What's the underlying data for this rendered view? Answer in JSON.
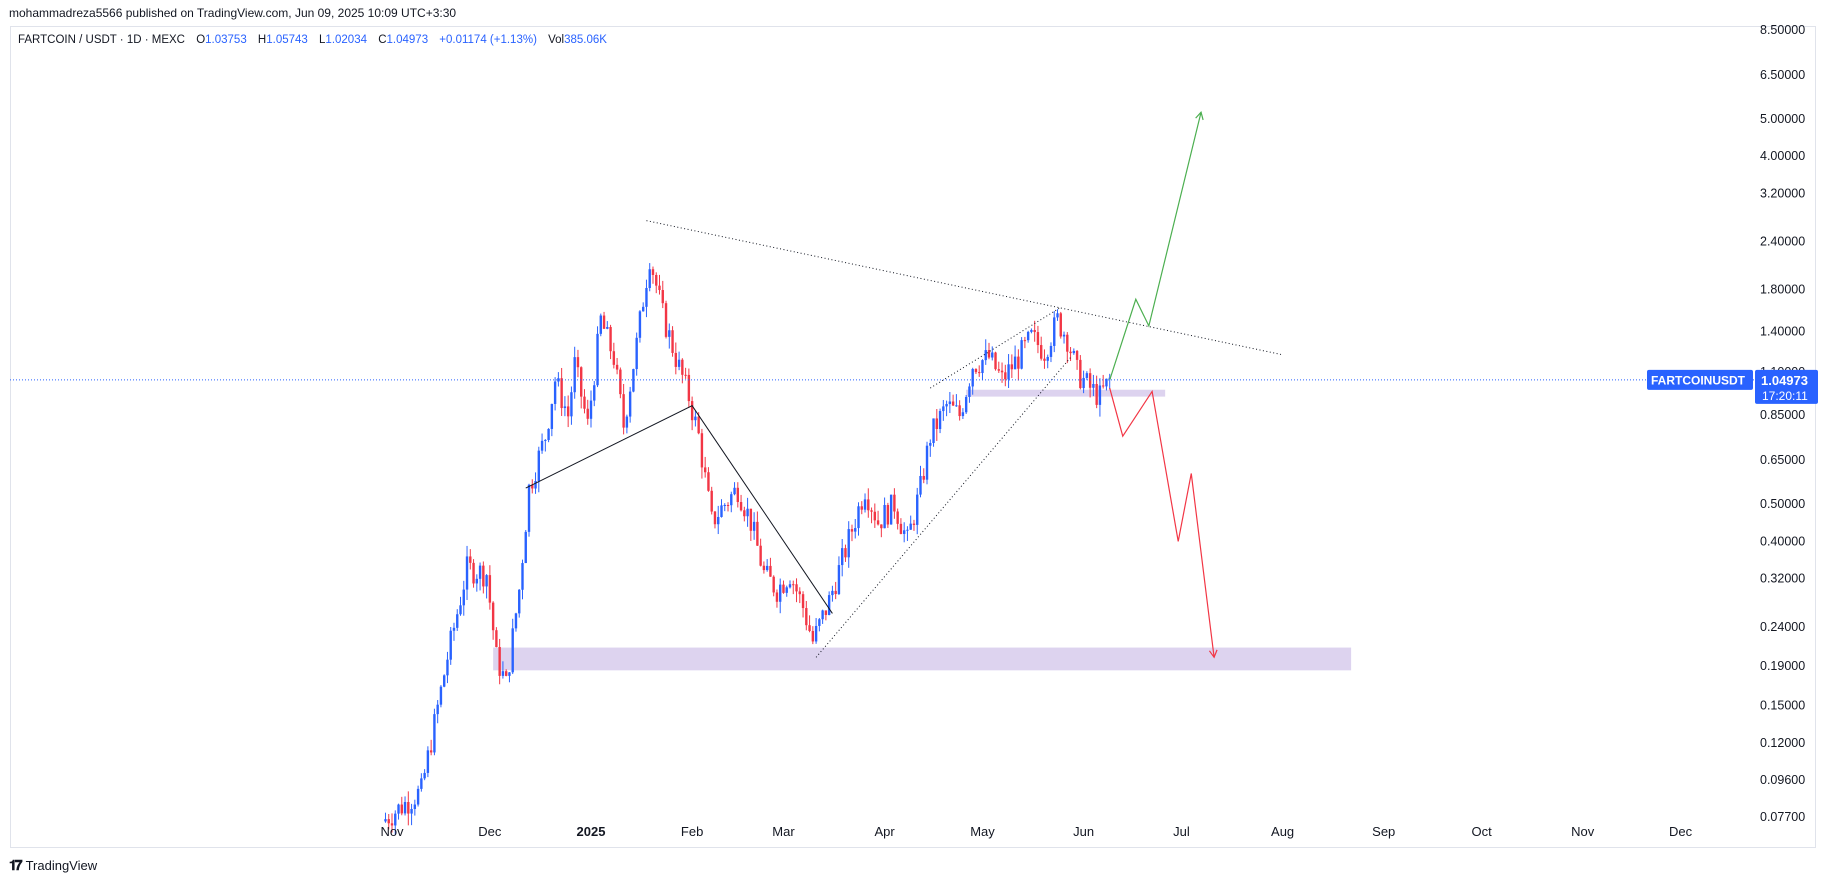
{
  "publish_bar": "mohammadreza5566 published on TradingView.com, Jun 09, 2025 10:09 UTC+3:30",
  "legend": {
    "symbol": "FARTCOIN / USDT · 1D · MEXC",
    "o_label": "O",
    "o": "1.03753",
    "h_label": "H",
    "h": "1.05743",
    "l_label": "L",
    "l": "1.02034",
    "c_label": "C",
    "c": "1.04973",
    "change": "+0.01174 (+1.13%)",
    "vol_label": "Vol",
    "vol": "385.06K"
  },
  "price_tag": {
    "symbol": "FARTCOINUSDT",
    "price": "1.04973",
    "countdown": "17:20:11"
  },
  "footer": {
    "logo_text": "TradingView"
  },
  "colors": {
    "up": "#2962ff",
    "down": "#f23645",
    "green_path": "#4caf50",
    "red_path": "#f23645",
    "zone": "#d1c4e9",
    "tag_bg": "#2962ff"
  },
  "chart_data": {
    "type": "candlestick",
    "y_scale": "log",
    "y_ticks": [
      "8.50000",
      "6.50000",
      "5.00000",
      "4.00000",
      "3.20000",
      "2.40000",
      "1.80000",
      "1.40000",
      "1.10000",
      "0.85000",
      "0.65000",
      "0.50000",
      "0.40000",
      "0.32000",
      "0.24000",
      "0.19000",
      "0.15000",
      "0.12000",
      "0.09600",
      "0.07700"
    ],
    "x_ticks": [
      {
        "label": "Nov",
        "date": "2024-11-01",
        "bold": false
      },
      {
        "label": "Dec",
        "date": "2024-12-01",
        "bold": false
      },
      {
        "label": "2025",
        "date": "2025-01-01",
        "bold": true
      },
      {
        "label": "Feb",
        "date": "2025-02-01",
        "bold": false
      },
      {
        "label": "Mar",
        "date": "2025-03-01",
        "bold": false
      },
      {
        "label": "Apr",
        "date": "2025-04-01",
        "bold": false
      },
      {
        "label": "May",
        "date": "2025-05-01",
        "bold": false
      },
      {
        "label": "Jun",
        "date": "2025-06-01",
        "bold": false
      },
      {
        "label": "Jul",
        "date": "2025-07-01",
        "bold": false
      },
      {
        "label": "Aug",
        "date": "2025-08-01",
        "bold": false
      },
      {
        "label": "Sep",
        "date": "2025-09-01",
        "bold": false
      },
      {
        "label": "Oct",
        "date": "2025-10-01",
        "bold": false
      },
      {
        "label": "Nov",
        "date": "2025-11-01",
        "bold": false
      },
      {
        "label": "Dec",
        "date": "2025-12-01",
        "bold": false
      }
    ],
    "price_anchors": [
      {
        "date": "2024-10-29",
        "p": 0.075
      },
      {
        "date": "2024-11-10",
        "p": 0.09
      },
      {
        "date": "2024-11-18",
        "p": 0.2
      },
      {
        "date": "2024-11-24",
        "p": 0.34
      },
      {
        "date": "2024-11-30",
        "p": 0.33
      },
      {
        "date": "2024-12-03",
        "p": 0.2
      },
      {
        "date": "2024-12-06",
        "p": 0.17
      },
      {
        "date": "2024-12-10",
        "p": 0.3
      },
      {
        "date": "2024-12-13",
        "p": 0.55
      },
      {
        "date": "2024-12-18",
        "p": 0.75
      },
      {
        "date": "2024-12-21",
        "p": 1.05
      },
      {
        "date": "2024-12-25",
        "p": 0.85
      },
      {
        "date": "2024-12-27",
        "p": 1.15
      },
      {
        "date": "2024-12-31",
        "p": 0.8
      },
      {
        "date": "2025-01-04",
        "p": 1.5
      },
      {
        "date": "2025-01-08",
        "p": 1.2
      },
      {
        "date": "2025-01-11",
        "p": 0.8
      },
      {
        "date": "2025-01-15",
        "p": 1.3
      },
      {
        "date": "2025-01-17",
        "p": 1.7
      },
      {
        "date": "2025-01-19",
        "p": 2.2
      },
      {
        "date": "2025-01-23",
        "p": 1.55
      },
      {
        "date": "2025-01-27",
        "p": 1.2
      },
      {
        "date": "2025-01-31",
        "p": 0.95
      },
      {
        "date": "2025-02-03",
        "p": 0.75
      },
      {
        "date": "2025-02-07",
        "p": 0.45
      },
      {
        "date": "2025-02-11",
        "p": 0.5
      },
      {
        "date": "2025-02-15",
        "p": 0.55
      },
      {
        "date": "2025-02-19",
        "p": 0.45
      },
      {
        "date": "2025-02-23",
        "p": 0.33
      },
      {
        "date": "2025-02-27",
        "p": 0.3
      },
      {
        "date": "2025-03-03",
        "p": 0.33
      },
      {
        "date": "2025-03-07",
        "p": 0.27
      },
      {
        "date": "2025-03-10",
        "p": 0.22
      },
      {
        "date": "2025-03-15",
        "p": 0.28
      },
      {
        "date": "2025-03-20",
        "p": 0.38
      },
      {
        "date": "2025-03-26",
        "p": 0.55
      },
      {
        "date": "2025-03-30",
        "p": 0.45
      },
      {
        "date": "2025-04-04",
        "p": 0.5
      },
      {
        "date": "2025-04-08",
        "p": 0.4
      },
      {
        "date": "2025-04-12",
        "p": 0.55
      },
      {
        "date": "2025-04-15",
        "p": 0.75
      },
      {
        "date": "2025-04-20",
        "p": 0.9
      },
      {
        "date": "2025-04-24",
        "p": 0.85
      },
      {
        "date": "2025-04-28",
        "p": 1.15
      },
      {
        "date": "2025-05-03",
        "p": 1.2
      },
      {
        "date": "2025-05-07",
        "p": 1.05
      },
      {
        "date": "2025-05-12",
        "p": 1.2
      },
      {
        "date": "2025-05-16",
        "p": 1.35
      },
      {
        "date": "2025-05-20",
        "p": 1.25
      },
      {
        "date": "2025-05-24",
        "p": 1.5
      },
      {
        "date": "2025-05-27",
        "p": 1.35
      },
      {
        "date": "2025-05-30",
        "p": 1.1
      },
      {
        "date": "2025-06-03",
        "p": 1.0
      },
      {
        "date": "2025-06-06",
        "p": 0.95
      },
      {
        "date": "2025-06-09",
        "p": 1.05
      }
    ],
    "current_price": 1.04973,
    "zones": [
      {
        "from": "2024-12-02",
        "to": "2025-08-22",
        "low": 0.185,
        "high": 0.212
      },
      {
        "from": "2025-04-26",
        "to": "2025-06-26",
        "low": 0.95,
        "high": 0.99
      }
    ],
    "lines": [
      {
        "style": "dotted",
        "points": [
          [
            "2025-01-18",
            2.72
          ],
          [
            "2025-08-01",
            1.22
          ]
        ]
      },
      {
        "style": "solid",
        "points": [
          [
            "2024-12-12",
            0.55
          ],
          [
            "2025-02-01",
            0.9
          ],
          [
            "2025-03-16",
            0.26
          ]
        ]
      },
      {
        "style": "dotted",
        "points": [
          [
            "2025-03-11",
            0.2
          ],
          [
            "2025-05-28",
            1.2
          ]
        ]
      },
      {
        "style": "dotted",
        "points": [
          [
            "2025-04-15",
            1.0
          ],
          [
            "2025-05-25",
            1.62
          ]
        ]
      }
    ],
    "projections": [
      {
        "name": "",
        "color": "#4caf50",
        "points": [
          [
            "2025-06-09",
            1.05
          ],
          [
            "2025-06-17",
            1.7
          ],
          [
            "2025-06-21",
            1.45
          ],
          [
            "2025-07-07",
            5.2
          ]
        ]
      },
      {
        "name": "",
        "color": "#f23645",
        "points": [
          [
            "2025-06-09",
            1.0
          ],
          [
            "2025-06-13",
            0.75
          ],
          [
            "2025-06-22",
            0.98
          ],
          [
            "2025-06-30",
            0.4
          ],
          [
            "2025-07-04",
            0.6
          ],
          [
            "2025-07-11",
            0.2
          ]
        ]
      }
    ]
  }
}
